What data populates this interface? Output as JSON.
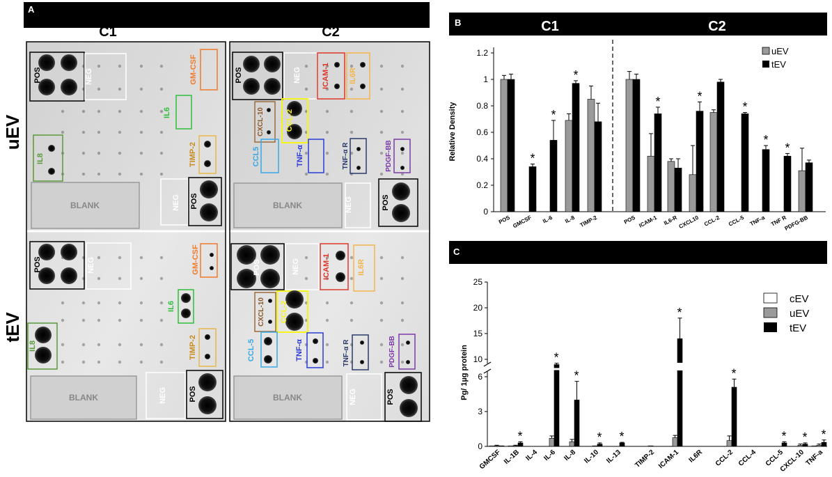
{
  "panel_a": {
    "panel_label": "A",
    "col_headers": [
      "C1",
      "C2"
    ],
    "row_labels": [
      "uEV",
      "tEV"
    ],
    "blot_labels": {
      "pos": "POS",
      "neg": "NEG",
      "blank": "BLANK",
      "gmcsf": "GM-CSF",
      "il6": "IL6",
      "il8": "IL8",
      "timp2": "TIMP-2",
      "icam1": "ICAM-1",
      "il6r": "IL6R",
      "cxcl10": "CXCL-10",
      "ccl2": "CCL-2",
      "ccl5_u": "CCL5",
      "ccl5_t": "CCL-5",
      "tnfa": "TNF-α",
      "tnfr": "TNF-α R",
      "pdgfbb": "PDGF-BB"
    },
    "colors": {
      "pos": "#111111",
      "neg": "#ffffff",
      "blank": "#9a9a9a",
      "gmcsf": "#f07a2a",
      "il6": "#2fbf3a",
      "il8": "#5a9a3a",
      "timp2": "#e8b84a",
      "icam1": "#e0352a",
      "il6r": "#f3b64a",
      "cxcl10": "#9a6a3a",
      "ccl2": "#f5f51a",
      "ccl5": "#38a8e8",
      "tnfa": "#2a3ad8",
      "tnfr": "#2a3a6a",
      "pdgfbb": "#7a3aa8"
    }
  },
  "chart_data": [
    {
      "panel_label": "B",
      "type": "bar",
      "header_groups": [
        "C1",
        "C2"
      ],
      "ylabel": "Relative Density",
      "ylim": [
        0,
        1.2
      ],
      "yticks": [
        "0",
        "0.2",
        "0.4",
        "0.6",
        "0.8",
        "1",
        "1.2"
      ],
      "categories": [
        "POS",
        "GMCSF",
        "IL-6",
        "IL-8",
        "TIMP-2",
        "POS",
        "ICAM-1",
        "IL6-R",
        "CXCL10",
        "CCL-2",
        "CCL-5",
        "TNF-a",
        "TNF R",
        "PDFG-BB"
      ],
      "series": [
        {
          "name": "uEV",
          "color": "#9a9a9a",
          "values": [
            1.0,
            0,
            0,
            0.69,
            0.85,
            1.0,
            0.42,
            0.38,
            0.28,
            0.75,
            0,
            0,
            0,
            0.31
          ]
        },
        {
          "name": "tEV",
          "color": "#000000",
          "values": [
            1.0,
            0.34,
            0.54,
            0.97,
            0.68,
            1.0,
            0.74,
            0.33,
            0.76,
            0.98,
            0.74,
            0.47,
            0.42,
            0.37
          ]
        }
      ],
      "errors": [
        [
          0.03,
          0,
          0,
          0.05,
          0.1,
          0.06,
          0.17,
          0.02,
          0.22,
          0.02,
          0,
          0,
          0,
          0.17
        ],
        [
          0.04,
          0.02,
          0.15,
          0.02,
          0.14,
          0.04,
          0.05,
          0.07,
          0.07,
          0.02,
          0.01,
          0.03,
          0.02,
          0.02
        ]
      ],
      "significant": [
        "GMCSF",
        "IL-6",
        "IL-8",
        "ICAM-1",
        "CXCL10",
        "CCL-5",
        "TNF-a",
        "TNF R"
      ],
      "star": "*",
      "legend": [
        "uEV",
        "tEV"
      ],
      "legend_position": "top-right"
    },
    {
      "panel_label": "C",
      "type": "bar",
      "ylabel": "Pg/ 1µg protein",
      "yticks_lower": [
        "0",
        "3",
        "6"
      ],
      "yticks_upper": [
        "10",
        "15",
        "20",
        "25"
      ],
      "axis_break": [
        6,
        10
      ],
      "categories": [
        "GMCSF",
        "IL-1B",
        "IL-4",
        "IL-6",
        "IL-8",
        "IL-10",
        "IL-13",
        "TIMP-2",
        "ICAM-1",
        "IL6R",
        "CCL-2",
        "CCL-4",
        "CCL-5",
        "CXCL-10",
        "TNF-a"
      ],
      "series": [
        {
          "name": "cEV",
          "color": "#ffffff",
          "values": [
            0.05,
            0.05,
            0,
            0,
            0,
            0,
            0,
            0,
            0,
            0,
            0,
            0,
            0,
            0,
            0.05
          ]
        },
        {
          "name": "uEV",
          "color": "#9a9a9a",
          "values": [
            0.05,
            0.05,
            0,
            0.7,
            0.4,
            0.05,
            0,
            0.05,
            0.75,
            0,
            0.5,
            0,
            0,
            0.1,
            0.1
          ]
        },
        {
          "name": "tEV",
          "color": "#000000",
          "values": [
            0.05,
            0.3,
            0,
            8.8,
            4.0,
            0.2,
            0.3,
            0,
            14.0,
            0,
            5.1,
            0,
            0.3,
            0.2,
            0.35
          ]
        }
      ],
      "errors": [
        [
          0,
          0,
          0,
          0,
          0,
          0,
          0,
          0,
          0,
          0,
          0,
          0,
          0,
          0,
          0
        ],
        [
          0.05,
          0.05,
          0,
          0.2,
          0.2,
          0,
          0,
          0,
          0.2,
          0,
          0.4,
          0,
          0,
          0.1,
          0.1
        ],
        [
          0,
          0.1,
          0,
          0.3,
          1.6,
          0.1,
          0.05,
          0,
          4.0,
          0,
          0.7,
          0,
          0.1,
          0.1,
          0.2
        ]
      ],
      "significant": [
        "IL-1B",
        "IL-6",
        "IL-8",
        "IL-10",
        "IL-13",
        "ICAM-1",
        "CCL-2",
        "CCL-5",
        "CXCL-10",
        "TNF-a"
      ],
      "star": "*",
      "legend": [
        "cEV",
        "uEV",
        "tEV"
      ],
      "legend_position": "top-right"
    }
  ]
}
